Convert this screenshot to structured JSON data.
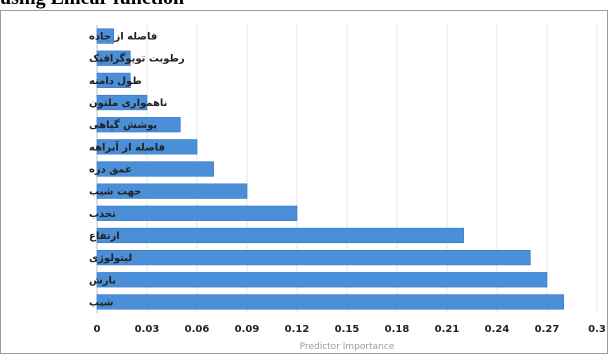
{
  "header": {
    "title": "using Linear function"
  },
  "chart_data": {
    "type": "bar",
    "orientation": "horizontal",
    "title": "using Linear function",
    "xlabel": "Predictor Importance",
    "ylabel": "",
    "categories": [
      "فاصله از جاده",
      "رطوبت توپوگرافیک",
      "طول دامنه",
      "ناهمواری ملتون",
      "پوشش گیاهی",
      "فاصله از آبراهه",
      "عمق دره",
      "جهت شیب",
      "تحدب",
      "ارتفاع",
      "لیتولوژی",
      "بارش",
      "شیب"
    ],
    "values": [
      0.01,
      0.02,
      0.02,
      0.03,
      0.05,
      0.06,
      0.07,
      0.09,
      0.12,
      0.22,
      0.26,
      0.27,
      0.28
    ],
    "xlim": [
      0,
      0.3
    ],
    "xticks": [
      "0",
      "0.03",
      "0.06",
      "0.09",
      "0.12",
      "0.15",
      "0.18",
      "0.21",
      "0.24",
      "0.27",
      "0.3"
    ],
    "grid": "vertical",
    "legend": "none",
    "colors": {
      "bar": "#4a8fd8",
      "bar_edge": "#3576c4",
      "grid": "#e4e4e4",
      "axis": "#bfbfbf"
    }
  }
}
